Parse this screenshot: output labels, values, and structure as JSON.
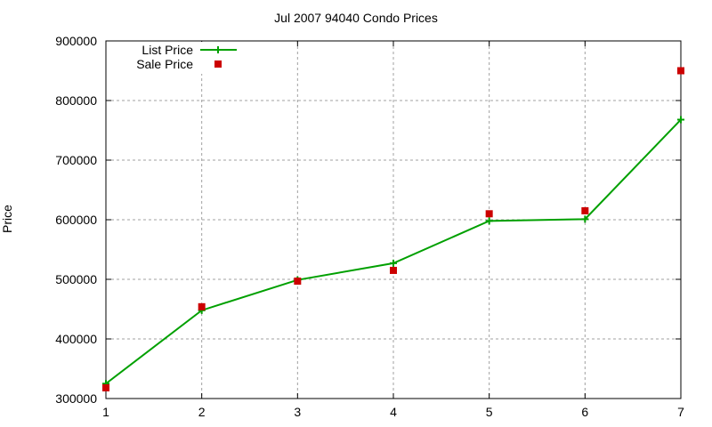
{
  "chart_data": {
    "type": "line",
    "title": "Jul 2007 94040 Condo Prices",
    "xlabel": "",
    "ylabel": "Price",
    "x": [
      1,
      2,
      3,
      4,
      5,
      6,
      7
    ],
    "xticks": [
      "1",
      "2",
      "3",
      "4",
      "5",
      "6",
      "7"
    ],
    "xlim": [
      1,
      7
    ],
    "ylim": [
      300000,
      900000
    ],
    "yticks": [
      "300000",
      "400000",
      "500000",
      "600000",
      "700000",
      "800000",
      "900000"
    ],
    "grid": true,
    "legend_position": "top-left",
    "series": [
      {
        "name": "List Price",
        "style": "line+points",
        "marker": "plus",
        "color": "#00a000",
        "values": [
          325000,
          448000,
          499000,
          527000,
          598000,
          601000,
          768000
        ]
      },
      {
        "name": "Sale Price",
        "style": "points",
        "marker": "filled-square",
        "color": "#cc0000",
        "values": [
          318000,
          454000,
          497000,
          515000,
          610000,
          615000,
          850000
        ]
      }
    ]
  }
}
